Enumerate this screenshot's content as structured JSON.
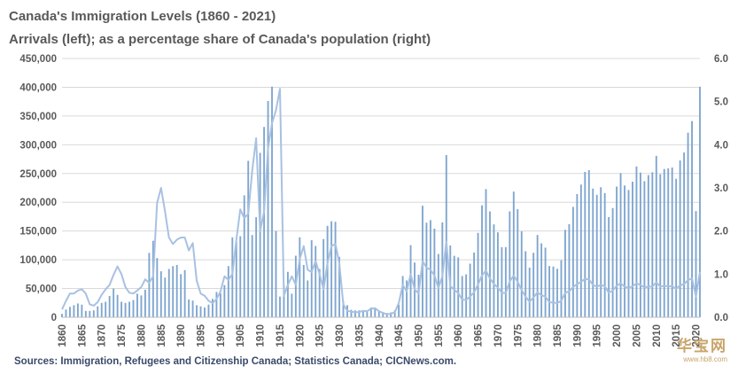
{
  "chart_data": {
    "type": "bar",
    "title": "Canada's Immigration Levels (1860 - 2021)",
    "subtitle": "Arrivals (left); as a percentage share of Canada's population (right)",
    "source": "Sources: Immigration, Refugees and Citizenship Canada;  Statistics Canada;  CICNews.com.",
    "x_start": 1860,
    "x_end": 2021,
    "xticks": [
      "1860",
      "1865",
      "1870",
      "1875",
      "1880",
      "1885",
      "1890",
      "1895",
      "1900",
      "1905",
      "1910",
      "1915",
      "1920",
      "1925",
      "1930",
      "1935",
      "1940",
      "1945",
      "1950",
      "1955",
      "1960",
      "1965",
      "1970",
      "1975",
      "1980",
      "1985",
      "1990",
      "1995",
      "2000",
      "2005",
      "2010",
      "2015",
      "2020"
    ],
    "yleft_ticks": [
      "0",
      "50,000",
      "100,000",
      "150,000",
      "200,000",
      "250,000",
      "300,000",
      "350,000",
      "400,000",
      "450,000"
    ],
    "yleft_lim": [
      0,
      450000
    ],
    "yright_ticks": [
      "0.0",
      "1.0",
      "2.0",
      "3.0",
      "4.0",
      "5.0",
      "6.0"
    ],
    "yright_lim": [
      0,
      6
    ],
    "grid": true,
    "series": [
      {
        "type": "bar",
        "axis": "left",
        "values": [
          6000,
          13500,
          18000,
          21000,
          24000,
          22000,
          11000,
          11000,
          12000,
          19000,
          25000,
          27000,
          37000,
          50000,
          39000,
          27000,
          25000,
          27000,
          30000,
          41000,
          38000,
          48000,
          112000,
          133000,
          103000,
          80000,
          69000,
          84000,
          89000,
          91000,
          75000,
          82000,
          31000,
          29000,
          21000,
          19000,
          17000,
          22000,
          32000,
          44000,
          42000,
          56000,
          89000,
          139000,
          131000,
          141000,
          212000,
          272000,
          143000,
          174000,
          286000,
          331000,
          376000,
          401000,
          150000,
          36000,
          56000,
          79000,
          41000,
          107000,
          139000,
          91000,
          64000,
          134000,
          124000,
          84000,
          136000,
          159000,
          167000,
          166000,
          105000,
          28000,
          21000,
          13000,
          12000,
          12000,
          11000,
          12000,
          17000,
          15000,
          11000,
          9000,
          7500,
          8500,
          12000,
          22000,
          71800,
          64100,
          125400,
          95200,
          74000,
          194000,
          164500,
          168900,
          154200,
          110000,
          164900,
          282000,
          124800,
          106900,
          104100,
          71700,
          74600,
          93200,
          112600,
          146800,
          194700,
          222900,
          184000,
          161500,
          147700,
          121900,
          122000,
          184200,
          218500,
          187900,
          149400,
          114900,
          86300,
          112100,
          143100,
          128600,
          121100,
          89200,
          88200,
          84300,
          99200,
          152100,
          161900,
          192000,
          214200,
          230800,
          252800,
          255800,
          223800,
          212900,
          226100,
          216000,
          174200,
          189900,
          227300,
          250600,
          229100,
          221300,
          235800,
          262200,
          251600,
          236800,
          247200,
          252200,
          280700,
          248700,
          257900,
          259000,
          260400,
          240800,
          272700,
          286500,
          321000,
          341200,
          184600,
          401000
        ]
      },
      {
        "type": "line",
        "axis": "right",
        "values": [
          0.18,
          0.38,
          0.55,
          0.55,
          0.62,
          0.65,
          0.55,
          0.3,
          0.27,
          0.35,
          0.52,
          0.65,
          0.75,
          0.98,
          1.18,
          1.0,
          0.7,
          0.57,
          0.55,
          0.62,
          0.7,
          0.88,
          0.8,
          0.95,
          2.65,
          3.0,
          2.45,
          1.85,
          1.7,
          1.8,
          1.85,
          1.85,
          1.55,
          1.72,
          0.85,
          0.55,
          0.5,
          0.38,
          0.33,
          0.42,
          0.6,
          0.95,
          0.87,
          1.0,
          1.8,
          2.5,
          2.3,
          2.4,
          3.4,
          4.15,
          2.0,
          2.45,
          3.9,
          4.5,
          4.8,
          5.3,
          0.5,
          0.75,
          0.95,
          0.75,
          1.35,
          1.65,
          1.1,
          1.05,
          1.3,
          1.0,
          0.65,
          1.25,
          1.65,
          1.7,
          1.25,
          0.3,
          0.15,
          0.13,
          0.12,
          0.12,
          0.15,
          0.14,
          0.2,
          0.21,
          0.14,
          0.1,
          0.07,
          0.08,
          0.12,
          0.33,
          0.75,
          0.6,
          1.0,
          0.65,
          0.55,
          1.3,
          1.15,
          1.1,
          0.97,
          0.68,
          0.95,
          1.75,
          0.72,
          0.64,
          0.56,
          0.41,
          0.4,
          0.48,
          0.58,
          0.76,
          0.97,
          1.08,
          0.9,
          0.77,
          0.69,
          0.57,
          0.56,
          0.83,
          0.97,
          0.82,
          0.63,
          0.48,
          0.36,
          0.46,
          0.58,
          0.51,
          0.48,
          0.35,
          0.34,
          0.33,
          0.38,
          0.57,
          0.6,
          0.7,
          0.77,
          0.82,
          0.89,
          0.88,
          0.75,
          0.71,
          0.75,
          0.72,
          0.57,
          0.62,
          0.73,
          0.79,
          0.71,
          0.68,
          0.72,
          0.79,
          0.75,
          0.69,
          0.71,
          0.71,
          0.81,
          0.71,
          0.73,
          0.72,
          0.72,
          0.66,
          0.74,
          0.77,
          0.86,
          0.9,
          0.48,
          1.05
        ]
      }
    ],
    "colors": {
      "bar": "#7fa6d0",
      "line": "#a8c1e2",
      "axis_text": "#595959",
      "grid": "#d9d9d9",
      "title": "#595959"
    }
  },
  "watermark": {
    "text": "华宝网",
    "url": "www.hb8.com"
  }
}
